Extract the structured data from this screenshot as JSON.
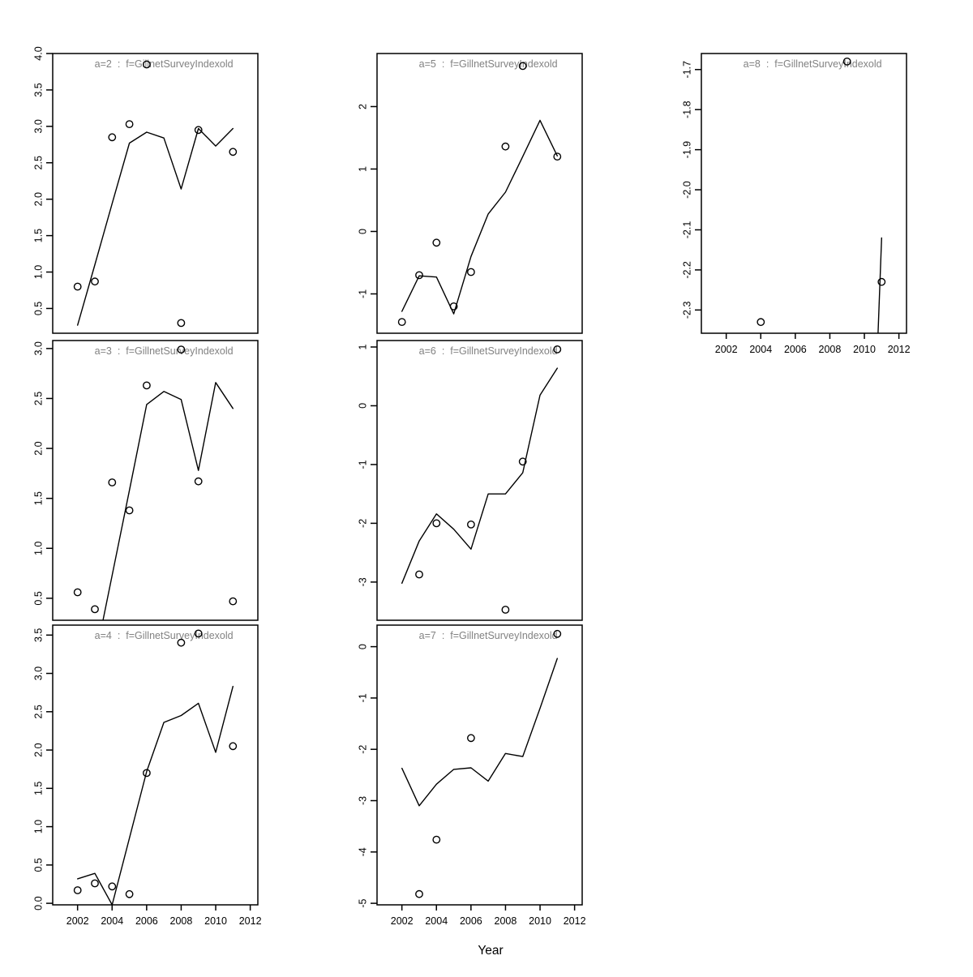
{
  "figure": {
    "xlabel": "Year",
    "background": "#ffffff",
    "axis_color": "#000000",
    "title_color": "#828282",
    "x_domain": [
      2000.56,
      2012.44
    ],
    "x_ticks": [
      "2002",
      "2004",
      "2006",
      "2008",
      "2010",
      "2012"
    ],
    "title_center_year": 2007,
    "legend": "none",
    "grid": "off"
  },
  "chart_data": [
    {
      "type": "line-scatter",
      "name": "a=2",
      "title": "a=2  :  f=GillnetSurveyIndexold",
      "row": 0,
      "col": 0,
      "show_x_axis": false,
      "y_ticks": [
        "0.5",
        "1.0",
        "1.5",
        "2.0",
        "2.5",
        "3.0",
        "3.5",
        "4.0"
      ],
      "y_domain": [
        0.16,
        4.0
      ],
      "line": [
        [
          2002,
          0.27
        ],
        [
          2003,
          1.1
        ],
        [
          2004,
          1.94
        ],
        [
          2005,
          2.77
        ],
        [
          2006,
          2.92
        ],
        [
          2007,
          2.84
        ],
        [
          2008,
          2.14
        ],
        [
          2009,
          2.97
        ],
        [
          2010,
          2.73
        ],
        [
          2011,
          2.97
        ]
      ],
      "points": [
        [
          2002,
          0.8
        ],
        [
          2003,
          0.87
        ],
        [
          2004,
          2.85
        ],
        [
          2005,
          3.03
        ],
        [
          2006,
          3.85
        ],
        [
          2008,
          0.3
        ],
        [
          2009,
          2.95
        ],
        [
          2011,
          2.65
        ]
      ]
    },
    {
      "type": "line-scatter",
      "name": "a=3",
      "title": "a=3  :  f=GillnetSurveyIndexold",
      "row": 1,
      "col": 0,
      "show_x_axis": false,
      "y_ticks": [
        "0.5",
        "1.0",
        "1.5",
        "2.0",
        "2.5",
        "3.0"
      ],
      "y_domain": [
        0.28,
        3.08
      ],
      "line": [
        [
          2003,
          -0.12
        ],
        [
          2004,
          0.73
        ],
        [
          2005,
          1.58
        ],
        [
          2006,
          2.44
        ],
        [
          2007,
          2.57
        ],
        [
          2008,
          2.49
        ],
        [
          2009,
          1.78
        ],
        [
          2010,
          2.66
        ],
        [
          2011,
          2.4
        ]
      ],
      "points": [
        [
          2002,
          0.56
        ],
        [
          2003,
          0.39
        ],
        [
          2004,
          1.66
        ],
        [
          2005,
          1.38
        ],
        [
          2006,
          2.63
        ],
        [
          2008,
          2.99
        ],
        [
          2009,
          1.67
        ],
        [
          2011,
          0.47
        ]
      ]
    },
    {
      "type": "line-scatter",
      "name": "a=4",
      "title": "a=4  :  f=GillnetSurveyIndexold",
      "row": 2,
      "col": 0,
      "show_x_axis": true,
      "y_ticks": [
        "0.0",
        "0.5",
        "1.0",
        "1.5",
        "2.0",
        "2.5",
        "3.0",
        "3.5"
      ],
      "y_domain": [
        -0.02,
        3.63
      ],
      "line": [
        [
          2002,
          0.32
        ],
        [
          2003,
          0.39
        ],
        [
          2004,
          -0.02
        ],
        [
          2005,
          0.85
        ],
        [
          2006,
          1.72
        ],
        [
          2007,
          2.36
        ],
        [
          2008,
          2.45
        ],
        [
          2009,
          2.61
        ],
        [
          2010,
          1.97
        ],
        [
          2011,
          2.83
        ]
      ],
      "points": [
        [
          2002,
          0.17
        ],
        [
          2003,
          0.26
        ],
        [
          2004,
          0.22
        ],
        [
          2005,
          0.12
        ],
        [
          2006,
          1.7
        ],
        [
          2008,
          3.4
        ],
        [
          2009,
          3.52
        ],
        [
          2011,
          2.05
        ]
      ]
    },
    {
      "type": "line-scatter",
      "name": "a=5",
      "title": "a=5  :  f=GillnetSurveyIndexold",
      "row": 0,
      "col": 1,
      "show_x_axis": false,
      "y_ticks": [
        "-1",
        "0",
        "1",
        "2"
      ],
      "y_domain": [
        -1.63,
        2.85
      ],
      "line": [
        [
          2002,
          -1.28
        ],
        [
          2003,
          -0.71
        ],
        [
          2004,
          -0.73
        ],
        [
          2005,
          -1.32
        ],
        [
          2006,
          -0.4
        ],
        [
          2007,
          0.28
        ],
        [
          2008,
          0.63
        ],
        [
          2009,
          1.2
        ],
        [
          2010,
          1.78
        ],
        [
          2011,
          1.21
        ]
      ],
      "points": [
        [
          2002,
          -1.45
        ],
        [
          2003,
          -0.7
        ],
        [
          2004,
          -0.18
        ],
        [
          2005,
          -1.2
        ],
        [
          2006,
          -0.65
        ],
        [
          2008,
          1.36
        ],
        [
          2009,
          2.65
        ],
        [
          2011,
          1.2
        ]
      ]
    },
    {
      "type": "line-scatter",
      "name": "a=6",
      "title": "a=6  :  f=GillnetSurveyIndexold",
      "row": 1,
      "col": 1,
      "show_x_axis": false,
      "y_ticks": [
        "-3",
        "-2",
        "-1",
        "0",
        "1"
      ],
      "y_domain": [
        -3.65,
        1.11
      ],
      "line": [
        [
          2002,
          -3.02
        ],
        [
          2003,
          -2.3
        ],
        [
          2004,
          -1.84
        ],
        [
          2005,
          -2.1
        ],
        [
          2006,
          -2.44
        ],
        [
          2007,
          -1.5
        ],
        [
          2008,
          -1.5
        ],
        [
          2009,
          -1.14
        ],
        [
          2010,
          0.18
        ],
        [
          2011,
          0.64
        ]
      ],
      "points": [
        [
          2003,
          -2.87
        ],
        [
          2004,
          -2.0
        ],
        [
          2006,
          -2.02
        ],
        [
          2008,
          -3.47
        ],
        [
          2009,
          -0.95
        ],
        [
          2011,
          0.96
        ]
      ]
    },
    {
      "type": "line-scatter",
      "name": "a=7",
      "title": "a=7  :  f=GillnetSurveyIndexold",
      "row": 2,
      "col": 1,
      "show_x_axis": true,
      "y_ticks": [
        "-5",
        "-4",
        "-3",
        "-2",
        "-1",
        "0"
      ],
      "y_domain": [
        -5.03,
        0.42
      ],
      "line": [
        [
          2002,
          -2.37
        ],
        [
          2003,
          -3.1
        ],
        [
          2004,
          -2.68
        ],
        [
          2005,
          -2.39
        ],
        [
          2006,
          -2.36
        ],
        [
          2007,
          -2.62
        ],
        [
          2008,
          -2.08
        ],
        [
          2009,
          -2.14
        ],
        [
          2010,
          -1.2
        ],
        [
          2011,
          -0.23
        ]
      ],
      "points": [
        [
          2003,
          -4.82
        ],
        [
          2004,
          -3.76
        ],
        [
          2006,
          -1.78
        ],
        [
          2011,
          0.25
        ]
      ]
    },
    {
      "type": "line-scatter",
      "name": "a=8",
      "title": "a=8  :  f=GillnetSurveyIndexold",
      "row": 0,
      "col": 2,
      "show_x_axis": true,
      "y_ticks": [
        "-2.3",
        "-2.2",
        "-2.1",
        "-2.0",
        "-1.9",
        "-1.8",
        "-1.7"
      ],
      "y_domain": [
        -2.358,
        -1.66
      ],
      "line": [
        [
          2010,
          -3.27
        ],
        [
          2011,
          -2.12
        ]
      ],
      "points": [
        [
          2004,
          -2.33
        ],
        [
          2009,
          -1.68
        ],
        [
          2011,
          -2.23
        ]
      ]
    }
  ]
}
